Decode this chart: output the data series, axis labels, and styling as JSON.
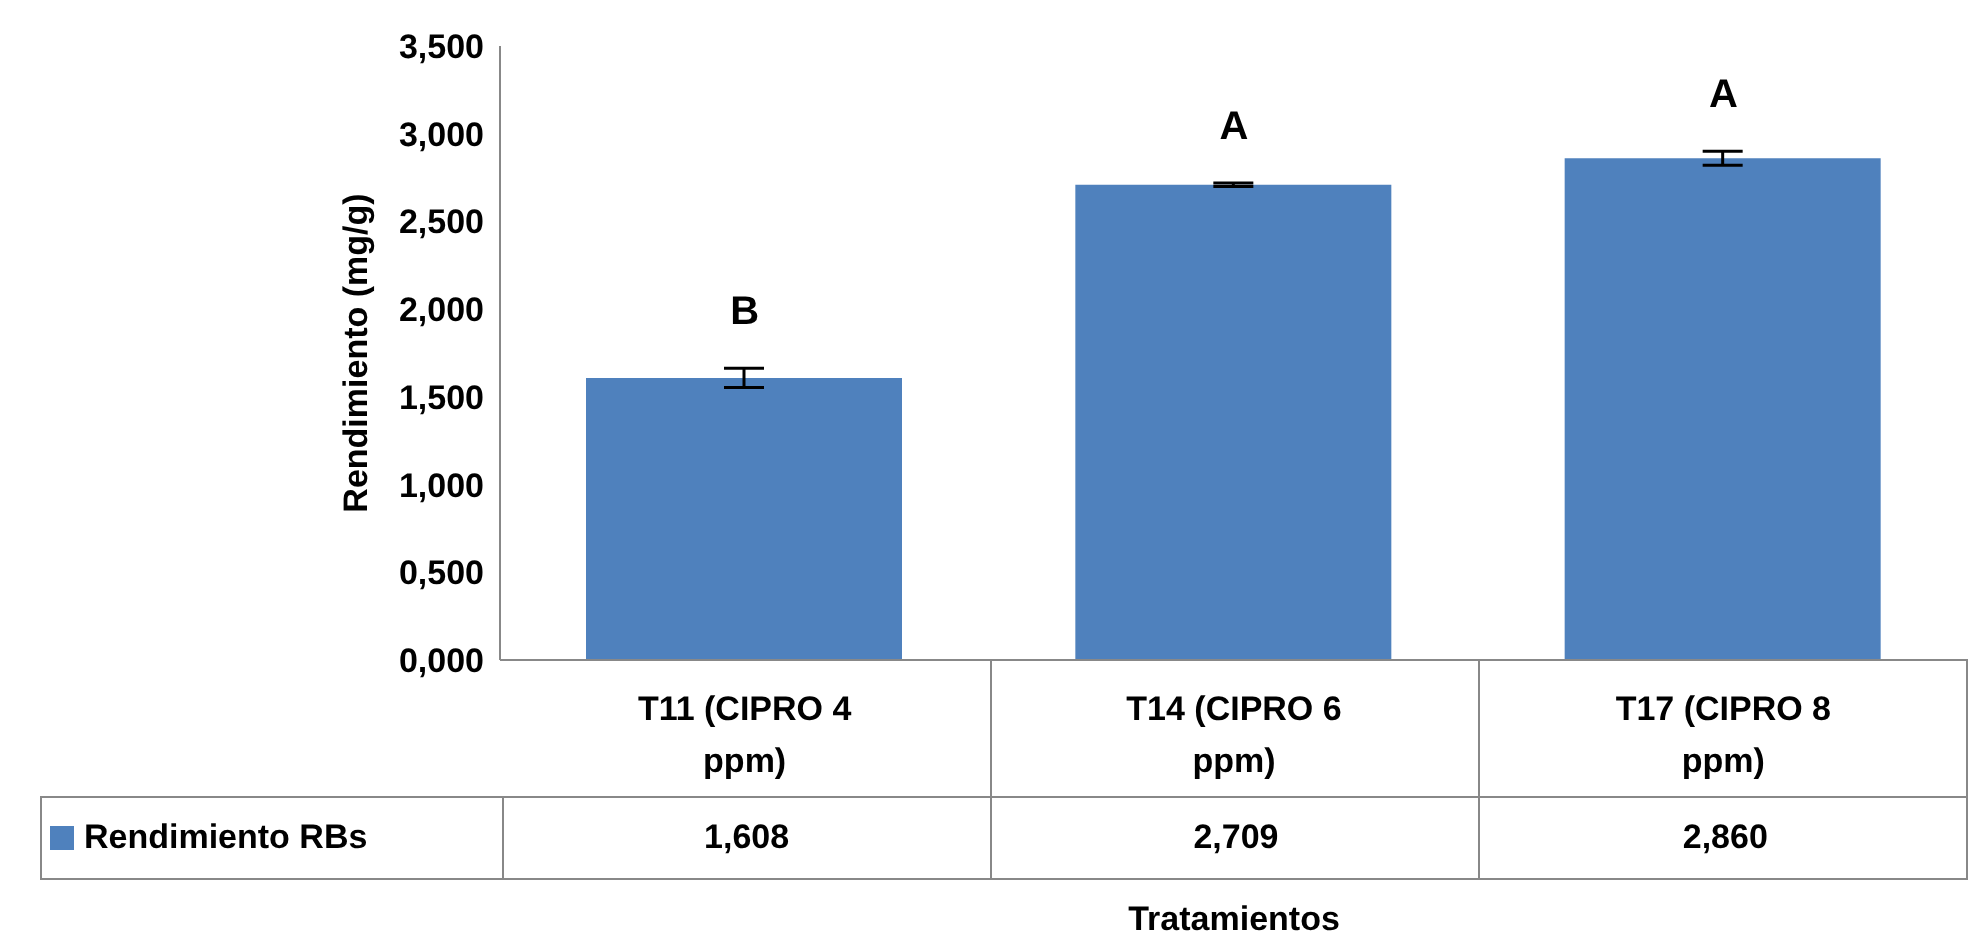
{
  "chart_data": {
    "type": "bar",
    "xlabel": "Tratamientos",
    "ylabel": "Rendimiento (mg/g)",
    "categories": [
      "T11 (CIPRO 4 ppm)",
      "T14 (CIPRO 6 ppm)",
      "T17 (CIPRO 8 ppm)"
    ],
    "series": [
      {
        "name": "Rendimiento RBs",
        "color": "#4f81bd",
        "values": [
          1.608,
          2.709,
          2.86
        ],
        "errors": [
          0.055,
          0.01,
          0.04
        ],
        "value_labels": [
          "1,608",
          "2,709",
          "2,860"
        ]
      }
    ],
    "ylim": [
      0,
      3.5
    ],
    "yticks": [
      {
        "value": 0,
        "label": "0,000"
      },
      {
        "value": 0.5,
        "label": "0,500"
      },
      {
        "value": 1,
        "label": "1,000"
      },
      {
        "value": 1.5,
        "label": "1,500"
      },
      {
        "value": 2,
        "label": "2,000"
      },
      {
        "value": 2.5,
        "label": "2,500"
      },
      {
        "value": 3,
        "label": "3,000"
      },
      {
        "value": 3.5,
        "label": "3,500"
      }
    ],
    "annotations": [
      "B",
      "A",
      "A"
    ],
    "legend": "bottom left",
    "grid": false
  }
}
